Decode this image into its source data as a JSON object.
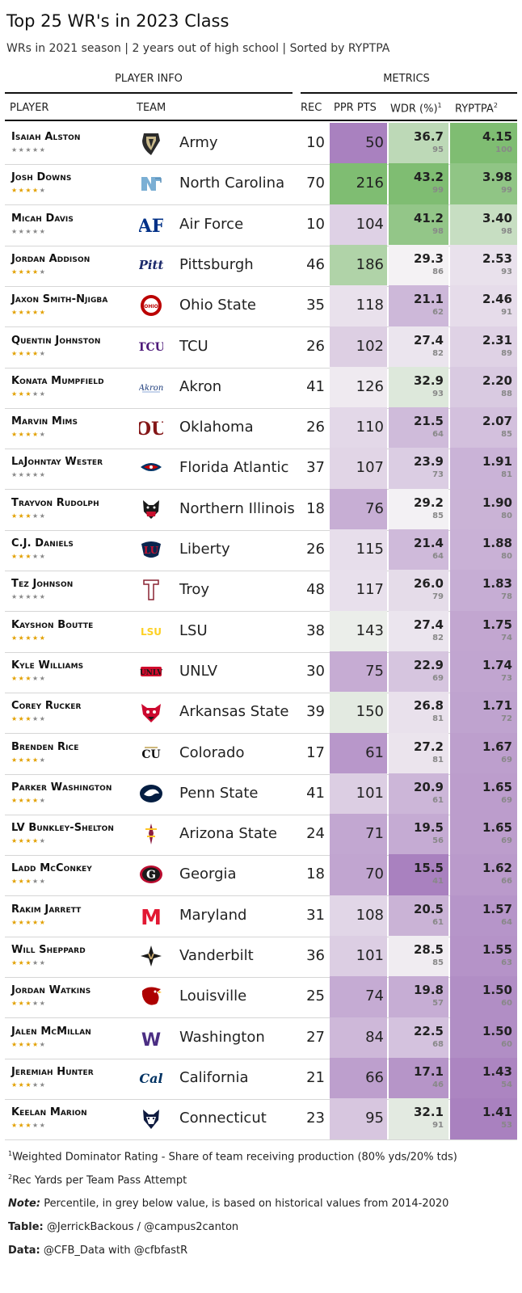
{
  "title": "Top 25 WR's in 2023 Class",
  "subtitle": "WRs in 2021 season | 2 years out of high school | Sorted by RYPTPA",
  "spanners": {
    "player_info": "PLAYER INFO",
    "metrics": "METRICS"
  },
  "columns": {
    "player": "PLAYER",
    "team": "TEAM",
    "rec": "REC",
    "ppr": "PPR PTS",
    "wdr": "WDR (%)",
    "wdr_sup": "1",
    "ryptpa": "RYPTPA",
    "ryptpa_sup": "2"
  },
  "colors": {
    "green_strong": "#7fbd72",
    "green_light": "#e8f4e2",
    "neutral": "#f4f2f4",
    "purple_light": "#eadcec",
    "purple_strong": "#a981bf",
    "star_gold": "#e2a000",
    "star_grey": "#888888"
  },
  "chart_data": {
    "type": "table",
    "rows": [
      {
        "player": "Isaiah Alston",
        "stars": 0,
        "team": "Army",
        "logo": "army-logo-icon",
        "rec": "10",
        "ppr": "50",
        "wdr": "36.7",
        "wdr_pct": "95",
        "ryp": "4.15",
        "ryp_pct": "100"
      },
      {
        "player": "Josh Downs",
        "stars": 4,
        "team": "North Carolina",
        "logo": "unc-logo-icon",
        "rec": "70",
        "ppr": "216",
        "wdr": "43.2",
        "wdr_pct": "99",
        "ryp": "3.98",
        "ryp_pct": "99"
      },
      {
        "player": "Micah Davis",
        "stars": 0,
        "team": "Air Force",
        "logo": "air-force-logo-icon",
        "rec": "10",
        "ppr": "104",
        "wdr": "41.2",
        "wdr_pct": "98",
        "ryp": "3.40",
        "ryp_pct": "98"
      },
      {
        "player": "Jordan Addison",
        "stars": 4,
        "team": "Pittsburgh",
        "logo": "pitt-logo-icon",
        "rec": "46",
        "ppr": "186",
        "wdr": "29.3",
        "wdr_pct": "86",
        "ryp": "2.53",
        "ryp_pct": "93"
      },
      {
        "player": "Jaxon Smith-Njigba",
        "stars": 5,
        "team": "Ohio State",
        "logo": "ohio-state-logo-icon",
        "rec": "35",
        "ppr": "118",
        "wdr": "21.1",
        "wdr_pct": "62",
        "ryp": "2.46",
        "ryp_pct": "91"
      },
      {
        "player": "Quentin Johnston",
        "stars": 4,
        "team": "TCU",
        "logo": "tcu-logo-icon",
        "rec": "26",
        "ppr": "102",
        "wdr": "27.4",
        "wdr_pct": "82",
        "ryp": "2.31",
        "ryp_pct": "89"
      },
      {
        "player": "Konata Mumpfield",
        "stars": 3,
        "team": "Akron",
        "logo": "akron-logo-icon",
        "rec": "41",
        "ppr": "126",
        "wdr": "32.9",
        "wdr_pct": "93",
        "ryp": "2.20",
        "ryp_pct": "88"
      },
      {
        "player": "Marvin Mims",
        "stars": 4,
        "team": "Oklahoma",
        "logo": "oklahoma-logo-icon",
        "rec": "26",
        "ppr": "110",
        "wdr": "21.5",
        "wdr_pct": "64",
        "ryp": "2.07",
        "ryp_pct": "85"
      },
      {
        "player": "LaJohntay Wester",
        "stars": 0,
        "team": "Florida Atlantic",
        "logo": "fau-logo-icon",
        "rec": "37",
        "ppr": "107",
        "wdr": "23.9",
        "wdr_pct": "73",
        "ryp": "1.91",
        "ryp_pct": "81"
      },
      {
        "player": "Trayvon Rudolph",
        "stars": 3,
        "team": "Northern Illinois",
        "logo": "niu-logo-icon",
        "rec": "18",
        "ppr": "76",
        "wdr": "29.2",
        "wdr_pct": "85",
        "ryp": "1.90",
        "ryp_pct": "80"
      },
      {
        "player": "C.J. Daniels",
        "stars": 3,
        "team": "Liberty",
        "logo": "liberty-logo-icon",
        "rec": "26",
        "ppr": "115",
        "wdr": "21.4",
        "wdr_pct": "64",
        "ryp": "1.88",
        "ryp_pct": "80"
      },
      {
        "player": "Tez Johnson",
        "stars": 0,
        "team": "Troy",
        "logo": "troy-logo-icon",
        "rec": "48",
        "ppr": "117",
        "wdr": "26.0",
        "wdr_pct": "79",
        "ryp": "1.83",
        "ryp_pct": "78"
      },
      {
        "player": "Kayshon Boutte",
        "stars": 5,
        "team": "LSU",
        "logo": "lsu-logo-icon",
        "rec": "38",
        "ppr": "143",
        "wdr": "27.4",
        "wdr_pct": "82",
        "ryp": "1.75",
        "ryp_pct": "74"
      },
      {
        "player": "Kyle Williams",
        "stars": 3,
        "team": "UNLV",
        "logo": "unlv-logo-icon",
        "rec": "30",
        "ppr": "75",
        "wdr": "22.9",
        "wdr_pct": "69",
        "ryp": "1.74",
        "ryp_pct": "73"
      },
      {
        "player": "Corey Rucker",
        "stars": 3,
        "team": "Arkansas State",
        "logo": "arkansas-state-logo-icon",
        "rec": "39",
        "ppr": "150",
        "wdr": "26.8",
        "wdr_pct": "81",
        "ryp": "1.71",
        "ryp_pct": "72"
      },
      {
        "player": "Brenden Rice",
        "stars": 4,
        "team": "Colorado",
        "logo": "colorado-logo-icon",
        "rec": "17",
        "ppr": "61",
        "wdr": "27.2",
        "wdr_pct": "81",
        "ryp": "1.67",
        "ryp_pct": "69"
      },
      {
        "player": "Parker Washington",
        "stars": 4,
        "team": "Penn State",
        "logo": "penn-state-logo-icon",
        "rec": "41",
        "ppr": "101",
        "wdr": "20.9",
        "wdr_pct": "61",
        "ryp": "1.65",
        "ryp_pct": "69"
      },
      {
        "player": "LV Bunkley-Shelton",
        "stars": 4,
        "team": "Arizona State",
        "logo": "arizona-state-logo-icon",
        "rec": "24",
        "ppr": "71",
        "wdr": "19.5",
        "wdr_pct": "56",
        "ryp": "1.65",
        "ryp_pct": "69"
      },
      {
        "player": "Ladd McConkey",
        "stars": 3,
        "team": "Georgia",
        "logo": "georgia-logo-icon",
        "rec": "18",
        "ppr": "70",
        "wdr": "15.5",
        "wdr_pct": "41",
        "ryp": "1.62",
        "ryp_pct": "66"
      },
      {
        "player": "Rakim Jarrett",
        "stars": 5,
        "team": "Maryland",
        "logo": "maryland-logo-icon",
        "rec": "31",
        "ppr": "108",
        "wdr": "20.5",
        "wdr_pct": "61",
        "ryp": "1.57",
        "ryp_pct": "64"
      },
      {
        "player": "Will Sheppard",
        "stars": 3,
        "team": "Vanderbilt",
        "logo": "vanderbilt-logo-icon",
        "rec": "36",
        "ppr": "101",
        "wdr": "28.5",
        "wdr_pct": "85",
        "ryp": "1.55",
        "ryp_pct": "63"
      },
      {
        "player": "Jordan Watkins",
        "stars": 3,
        "team": "Louisville",
        "logo": "louisville-logo-icon",
        "rec": "25",
        "ppr": "74",
        "wdr": "19.8",
        "wdr_pct": "57",
        "ryp": "1.50",
        "ryp_pct": "60"
      },
      {
        "player": "Jalen McMillan",
        "stars": 4,
        "team": "Washington",
        "logo": "washington-logo-icon",
        "rec": "27",
        "ppr": "84",
        "wdr": "22.5",
        "wdr_pct": "68",
        "ryp": "1.50",
        "ryp_pct": "60"
      },
      {
        "player": "Jeremiah Hunter",
        "stars": 3,
        "team": "California",
        "logo": "california-logo-icon",
        "rec": "21",
        "ppr": "66",
        "wdr": "17.1",
        "wdr_pct": "46",
        "ryp": "1.43",
        "ryp_pct": "54"
      },
      {
        "player": "Keelan Marion",
        "stars": 3,
        "team": "Connecticut",
        "logo": "uconn-logo-icon",
        "rec": "23",
        "ppr": "95",
        "wdr": "32.1",
        "wdr_pct": "91",
        "ryp": "1.41",
        "ryp_pct": "53"
      }
    ]
  },
  "footnotes": {
    "fn1_sup": "1",
    "fn1": "Weighted Dominator Rating - Share of team receiving production (80% yds/20% tds)",
    "fn2_sup": "2",
    "fn2": "Rec Yards per Team Pass Attempt",
    "note_label": "Note:",
    "note": "Percentile, in grey below value, is based on historical values from 2014-2020",
    "table_label": "Table:",
    "table": "@JerrickBackous / @campus2canton",
    "data_label": "Data:",
    "data": "@CFB_Data with @cfbfastR"
  }
}
